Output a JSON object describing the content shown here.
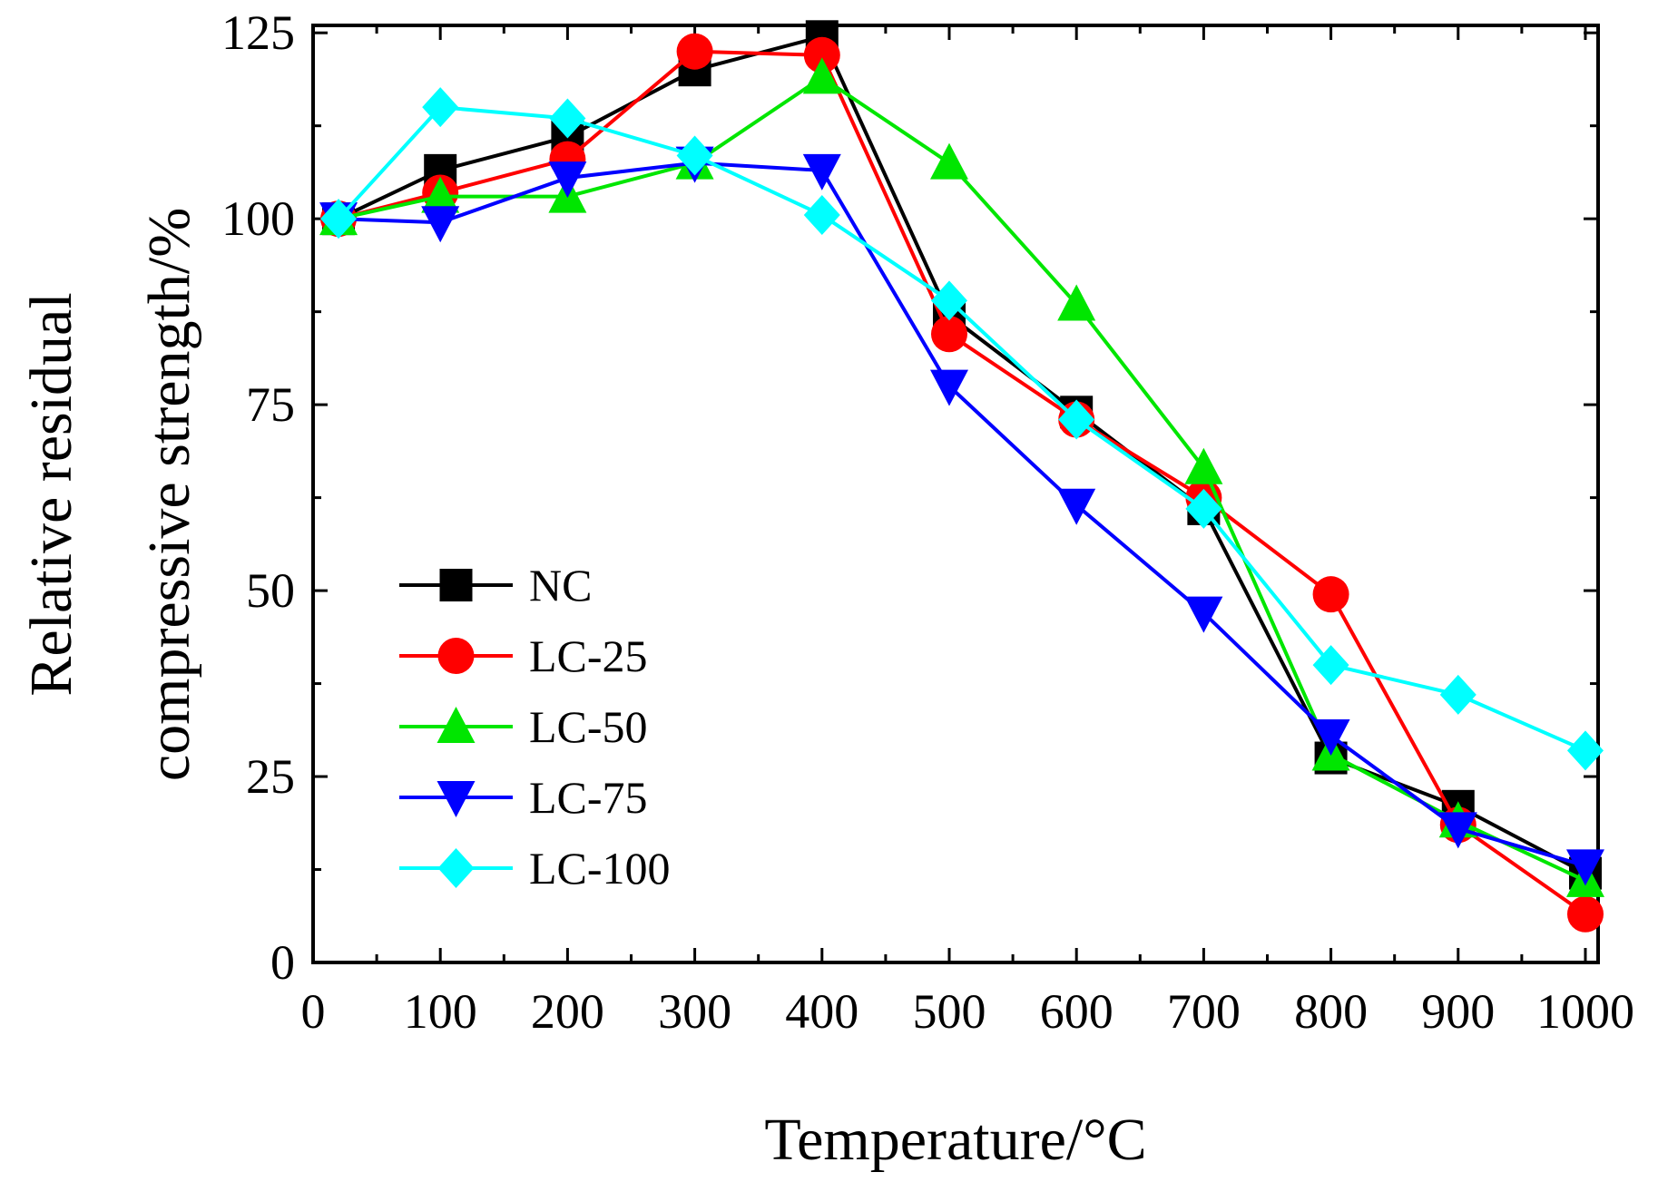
{
  "chart_data": {
    "type": "line",
    "title": "",
    "xlabel": "Temperature/°C",
    "ylabel_lines": [
      "Relative residual",
      "compressive strength/%"
    ],
    "xlim": [
      0,
      1010
    ],
    "ylim": [
      0,
      126
    ],
    "x_ticks": [
      0,
      100,
      200,
      300,
      400,
      500,
      600,
      700,
      800,
      900,
      1000
    ],
    "x_tick_labels": [
      "0",
      "100",
      "200",
      "300",
      "400",
      "500",
      "600",
      "700",
      "800",
      "900",
      "1000"
    ],
    "y_ticks": [
      0,
      25,
      50,
      75,
      100,
      125
    ],
    "y_tick_labels": [
      "0",
      "25",
      "50",
      "75",
      "100",
      "125"
    ],
    "x": [
      20,
      100,
      200,
      300,
      400,
      500,
      600,
      700,
      800,
      900,
      1000
    ],
    "legend_position": "lower-left",
    "series": [
      {
        "name": "NC",
        "color": "#000000",
        "marker": "square",
        "values": [
          100,
          106.5,
          111,
          120,
          124.5,
          87,
          74,
          61,
          27.5,
          21,
          12
        ]
      },
      {
        "name": "LC-25",
        "color": "#ff0000",
        "marker": "circle",
        "values": [
          100,
          103.5,
          108,
          122.5,
          122,
          84.5,
          73,
          62.5,
          49.5,
          18.5,
          6.5
        ]
      },
      {
        "name": "LC-50",
        "color": "#00e600",
        "marker": "triangle-up",
        "values": [
          100,
          103,
          103,
          107.5,
          119,
          107.5,
          88.5,
          66.5,
          28,
          19,
          11
        ]
      },
      {
        "name": "LC-75",
        "color": "#0000ff",
        "marker": "triangle-down",
        "values": [
          100,
          99.5,
          105.5,
          107.5,
          106.5,
          77.5,
          61.5,
          47,
          30.5,
          18,
          13
        ]
      },
      {
        "name": "LC-100",
        "color": "#00ffff",
        "marker": "diamond",
        "values": [
          100,
          115,
          113.5,
          108.5,
          100.5,
          89,
          73,
          61,
          40,
          36,
          28.5
        ]
      }
    ]
  }
}
